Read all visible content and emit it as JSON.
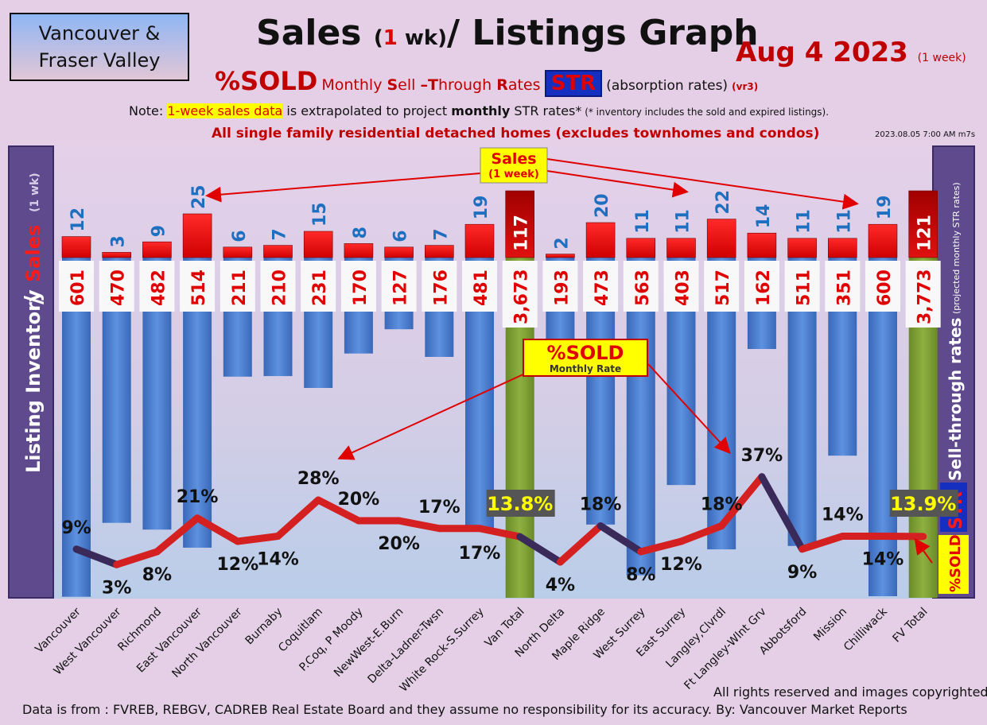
{
  "header": {
    "region_line1": "Vancouver &",
    "region_line2": "Fraser Valley",
    "title_part1": "Sales ",
    "title_paren_open": "(",
    "title_one": "1",
    "title_wk": " wk)",
    "title_part2": "/ Listings Graph",
    "date": "Aug 4  2023",
    "date_note": "(1 week)",
    "sub_sold": "%SOLD",
    "sub_s": "S",
    "sub_ell": "ell ",
    "sub_dash": "–",
    "sub_t": "T",
    "sub_hrough": "hrough ",
    "sub_r": "R",
    "sub_ates": "ates",
    "sub_str": "STR",
    "sub_absorption": "(absorption rates)",
    "sub_version": "(vr3)",
    "sub_monthly": "Monthly ",
    "note_prefix": "Note: ",
    "note_highlight": "1-week sales data",
    "note_mid": " is extrapolated to project ",
    "note_bold": "monthly",
    "note_rest": " STR rates*",
    "note_small": " (* inventory includes the sold and expired listings).",
    "all_single": "All single family residential detached homes (excludes townhomes and condos)",
    "timestamp": "2023.08.05 7:00 AM m7s"
  },
  "side_labels": {
    "left_main": "Listing Inventory",
    "left_slash": "/",
    "left_sales": "Sales",
    "left_sub": "(1 wk)",
    "right_main": "Sell-through rates",
    "right_sub": "(projected monthly STR rates)",
    "right_str": "STR",
    "right_sold": "%SOLD"
  },
  "callouts": {
    "sales_title": "Sales",
    "sales_sub": "(1 week)",
    "sold_title": "%SOLD",
    "sold_sub": "Monthly Rate"
  },
  "footer": {
    "source": "Data is from : FVREB, REBGV, CADREB Real Estate Board and they assume no responsibility for its accuracy. By: Vancouver Market Reports",
    "rights": "All rights reserved and  images copyrighted"
  },
  "colors": {
    "sales_bar": "#ff1414",
    "total_sales_bar": "#c00000",
    "listing_bar": "#4a7fd4",
    "total_listing_bar": "#7a9a30",
    "str_line": "#d42020",
    "sales_label": "#1f6fc0",
    "listing_label": "#e00000"
  },
  "chart_data": {
    "type": "bar",
    "categories": [
      "Vancouver",
      "West Vancouver",
      "Richmond",
      "East Vancouver",
      "North Vancouver",
      "Burnaby",
      "Coquitlam",
      "P.Coq, P Moody",
      "NewWest-E.Burn",
      "Delta-Ladner-Twsn",
      "White Rock-S.Surrey",
      "Van Total",
      "North Delta",
      "Maple Ridge",
      "West Surrey",
      "East Surrey",
      "Langley,Clvrdl",
      "Ft Langley-Wlnt Grv",
      "Abbotsford",
      "Mission",
      "Chilliwack",
      "FV Total"
    ],
    "series": [
      {
        "name": "Sales",
        "values": [
          12,
          3,
          9,
          25,
          6,
          7,
          15,
          8,
          6,
          7,
          19,
          117,
          2,
          20,
          11,
          11,
          22,
          14,
          11,
          11,
          19,
          121
        ]
      },
      {
        "name": "Listing Inventory",
        "values": [
          "601",
          "470",
          "482",
          "514",
          "211",
          "210",
          "231",
          "170",
          "127",
          "176",
          "481",
          "3,673",
          "193",
          "473",
          "563",
          "403",
          "517",
          "162",
          "511",
          "351",
          "600",
          "3,773"
        ]
      },
      {
        "name": "%SOLD",
        "values": [
          9,
          3,
          8,
          21,
          12,
          14,
          28,
          20,
          20,
          17,
          17,
          13.8,
          4,
          18,
          8,
          12,
          18,
          37,
          9,
          14,
          14,
          13.9
        ],
        "labels": [
          "9%",
          "3%",
          "8%",
          "21%",
          "12%",
          "14%",
          "28%",
          "20%",
          "20%",
          "17%",
          "17%",
          "13.8%",
          "4%",
          "18%",
          "8%",
          "12%",
          "18%",
          "37%",
          "9%",
          "14%",
          "14%",
          "13.9%"
        ]
      }
    ],
    "totals": [
      "Van Total",
      "FV Total"
    ]
  }
}
